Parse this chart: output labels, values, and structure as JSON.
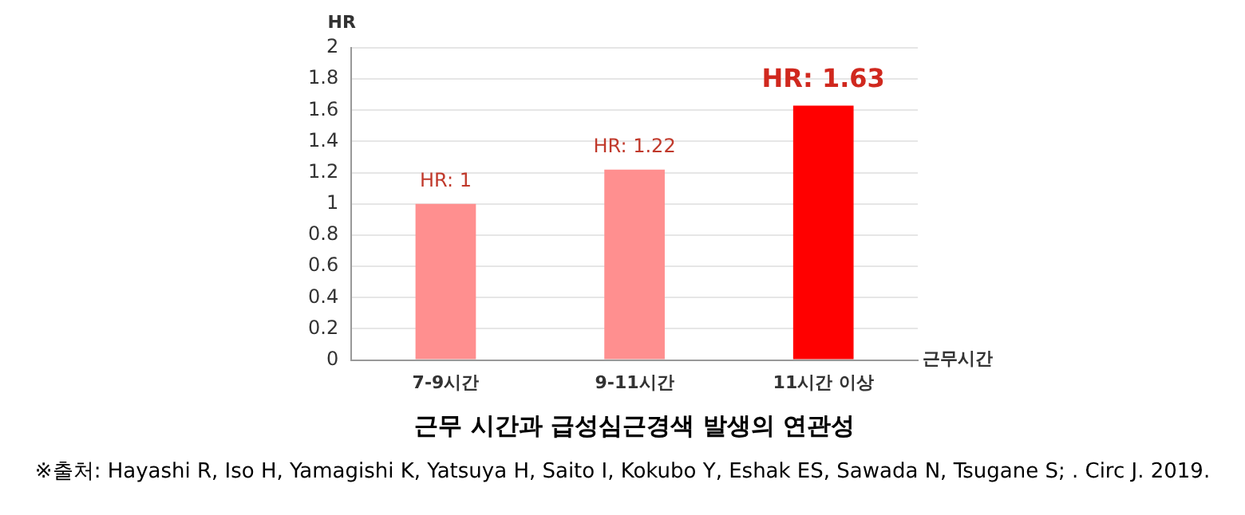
{
  "chart_data": {
    "type": "bar",
    "title": "근무 시간과 급성심근경색 발생의 연관성",
    "xlabel": "근무시간",
    "ylabel": "HR",
    "categories": [
      "7-9시간",
      "9-11시간",
      "11시간 이상"
    ],
    "values": [
      1,
      1.22,
      1.63
    ],
    "colors": [
      "#ff8f8f",
      "#ff8f8f",
      "#ff0000"
    ],
    "value_labels": [
      "HR: 1",
      "HR: 1.22",
      "HR: 1.63"
    ],
    "ylim": [
      0,
      2
    ],
    "yticks": [
      0,
      0.2,
      0.4,
      0.6,
      0.8,
      1,
      1.2,
      1.4,
      1.6,
      1.8,
      2
    ],
    "grid": "y",
    "annotations": [
      "※출처: Hayashi R, Iso H, Yamagishi K, Yatsuya H, Saito I, Kokubo Y, Eshak ES, Sawada N, Tsugane S; . Circ J. 2019."
    ]
  }
}
